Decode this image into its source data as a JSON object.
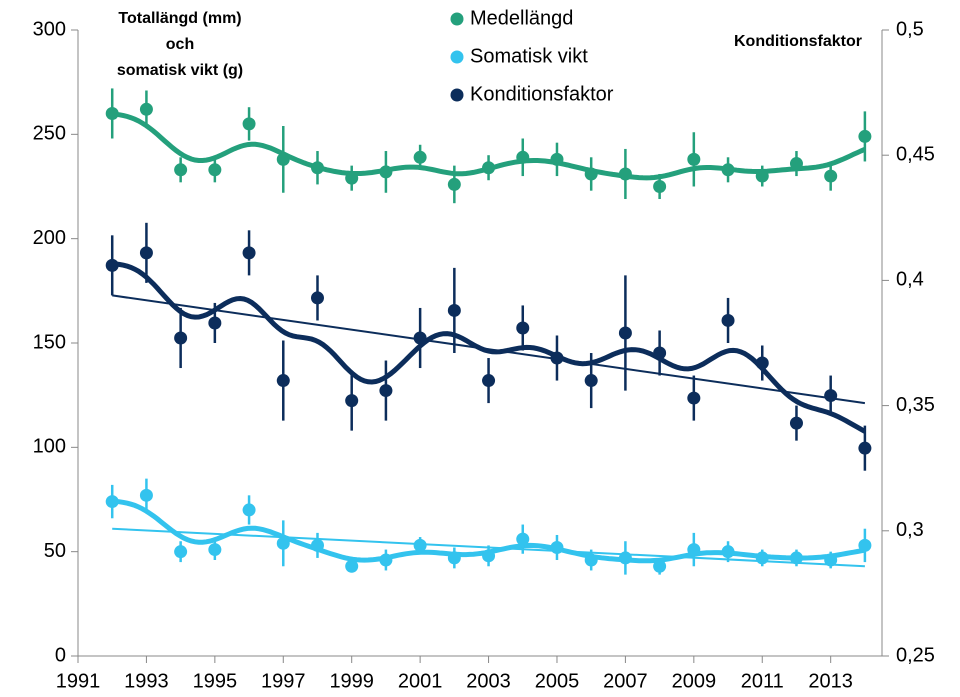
{
  "chart_data": {
    "type": "scatter",
    "y_label": [
      "Totallängd (mm)",
      "och",
      "somatisk vikt (g)"
    ],
    "y2_label": "Konditionsfaktor",
    "x": [
      1992,
      1993,
      1994,
      1995,
      1996,
      1997,
      1998,
      1999,
      2000,
      2001,
      2002,
      2003,
      2004,
      2005,
      2006,
      2007,
      2008,
      2009,
      2010,
      2011,
      2012,
      2013,
      2014
    ],
    "xlim": [
      1991,
      2014.5
    ],
    "xticks": [
      1991,
      1993,
      1995,
      1997,
      1999,
      2001,
      2003,
      2005,
      2007,
      2009,
      2011,
      2013
    ],
    "ylim": [
      0,
      300
    ],
    "yticks": [
      0,
      50,
      100,
      150,
      200,
      250,
      300
    ],
    "y2lim": [
      0.25,
      0.5
    ],
    "y2ticks": [
      {
        "value": 0.25,
        "label": "0,25"
      },
      {
        "value": 0.3,
        "label": "0,3"
      },
      {
        "value": 0.35,
        "label": "0,35"
      },
      {
        "value": 0.4,
        "label": "0,4"
      },
      {
        "value": 0.45,
        "label": "0,45"
      },
      {
        "value": 0.5,
        "label": "0,5"
      }
    ],
    "series": [
      {
        "name": "Medellängd",
        "color": "#24a07c",
        "values": [
          260,
          262,
          233,
          233,
          255,
          238,
          234,
          229,
          232,
          239,
          226,
          234,
          239,
          238,
          231,
          231,
          225,
          238,
          233,
          230,
          236,
          230,
          249
        ],
        "errors": [
          12,
          9,
          6,
          6,
          8,
          16,
          8,
          6,
          10,
          6,
          9,
          6,
          9,
          8,
          8,
          12,
          6,
          13,
          6,
          5,
          6,
          7,
          12
        ]
      },
      {
        "name": "Somatisk vikt",
        "color": "#33c3ee",
        "values": [
          74,
          77,
          50,
          51,
          70,
          54,
          53,
          43,
          46,
          53,
          47,
          48,
          56,
          52,
          46,
          47,
          43,
          51,
          50,
          47,
          47,
          46,
          53
        ],
        "errors": [
          8,
          8,
          5,
          5,
          7,
          11,
          6,
          3,
          5,
          4,
          5,
          5,
          7,
          6,
          5,
          8,
          4,
          8,
          5,
          4,
          4,
          4,
          8
        ],
        "trend": {
          "x": [
            1992,
            2014
          ],
          "values": [
            61,
            43
          ]
        }
      },
      {
        "name": "Konditionsfaktor",
        "color": "#0c2d5b",
        "axis": "y2",
        "values": [
          0.406,
          0.411,
          0.377,
          0.383,
          0.411,
          0.36,
          0.393,
          0.352,
          0.356,
          0.377,
          0.388,
          0.36,
          0.381,
          0.369,
          0.36,
          0.379,
          0.371,
          0.353,
          0.384,
          0.367,
          0.343,
          0.354,
          0.333
        ],
        "errors": [
          0.012,
          0.012,
          0.012,
          0.008,
          0.009,
          0.016,
          0.009,
          0.012,
          0.012,
          0.012,
          0.017,
          0.009,
          0.009,
          0.009,
          0.011,
          0.023,
          0.009,
          0.009,
          0.009,
          0.007,
          0.007,
          0.008,
          0.009
        ],
        "trend": {
          "x": [
            1992,
            2014
          ],
          "values": [
            0.394,
            0.351
          ]
        }
      }
    ]
  }
}
